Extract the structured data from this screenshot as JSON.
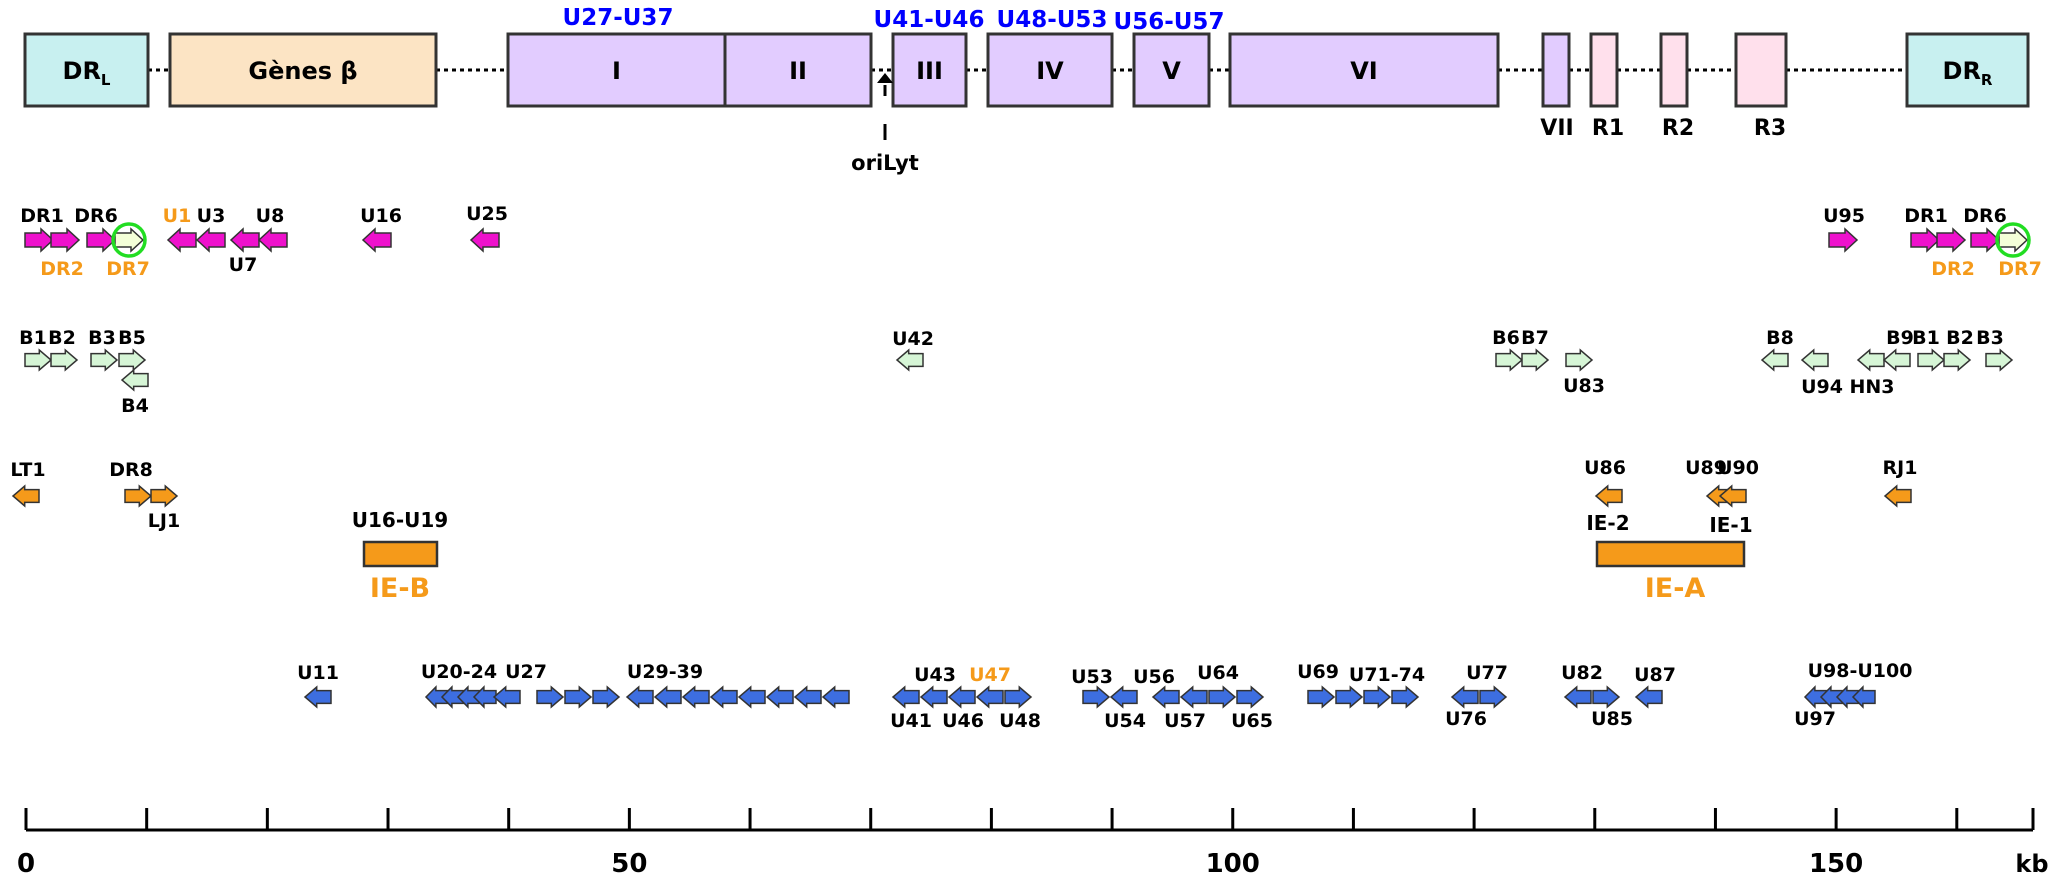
{
  "colors": {
    "dr_fill": "#c8f0f0",
    "beta_fill": "#fce4c4",
    "block_fill": "#e2ccff",
    "r_fill": "#ffe0ec",
    "magenta": "#ee11cc",
    "light_green": "#d6f5d6",
    "orange": "#f59a1a",
    "blue": "#3d6ee0",
    "blue_text": "#0000ff",
    "orange_text": "#f59a1a",
    "circle": "#22dd22"
  },
  "genome": {
    "blocks": [
      {
        "label": "DR",
        "sub": "L",
        "fill": "dr"
      },
      {
        "label": "Gènes β",
        "sub": "",
        "fill": "beta"
      },
      {
        "label": "I",
        "sub": "",
        "fill": "block"
      },
      {
        "label": "II",
        "sub": "",
        "fill": "block"
      },
      {
        "label": "III",
        "sub": "",
        "fill": "block"
      },
      {
        "label": "IV",
        "sub": "",
        "fill": "block"
      },
      {
        "label": "V",
        "sub": "",
        "fill": "block"
      },
      {
        "label": "VI",
        "sub": "",
        "fill": "block"
      },
      {
        "label": "",
        "sub": "",
        "fill": "block"
      },
      {
        "label": "",
        "sub": "",
        "fill": "r"
      },
      {
        "label": "",
        "sub": "",
        "fill": "r"
      },
      {
        "label": "",
        "sub": "",
        "fill": "r"
      },
      {
        "label": "DR",
        "sub": "R",
        "fill": "dr"
      }
    ],
    "range_labels": [
      "U27-U37",
      "U41-U46",
      "U48-U53",
      "U56-U57"
    ],
    "below_labels": [
      "VII",
      "R1",
      "R2",
      "R3"
    ],
    "origin_label": "oriLyt"
  },
  "gene_rows": [
    {
      "color": "magenta",
      "genes": [
        {
          "dir": "r"
        },
        {
          "dir": "r"
        },
        {
          "dir": "r"
        },
        {
          "dir": "r",
          "fill": "light",
          "circled": true
        },
        {
          "dir": "l"
        },
        {
          "dir": "l"
        },
        {
          "dir": "l"
        },
        {
          "dir": "l"
        },
        {
          "dir": "l"
        },
        {
          "dir": "l"
        },
        {
          "dir": "r"
        },
        {
          "dir": "r"
        },
        {
          "dir": "r"
        },
        {
          "dir": "r"
        },
        {
          "dir": "r",
          "fill": "light",
          "circled": true
        }
      ],
      "labels": [
        {
          "text": "DR1",
          "color": "black"
        },
        {
          "text": "DR6",
          "color": "black"
        },
        {
          "text": "U1",
          "color": "orange"
        },
        {
          "text": "U3",
          "color": "black"
        },
        {
          "text": "U8",
          "color": "black"
        },
        {
          "text": "DR2",
          "color": "orange"
        },
        {
          "text": "DR7",
          "color": "orange"
        },
        {
          "text": "U7",
          "color": "black"
        },
        {
          "text": "U16",
          "color": "black"
        },
        {
          "text": "U25",
          "color": "black"
        },
        {
          "text": "U95",
          "color": "black"
        },
        {
          "text": "DR1",
          "color": "black"
        },
        {
          "text": "DR6",
          "color": "black"
        },
        {
          "text": "DR2",
          "color": "orange"
        },
        {
          "text": "DR7",
          "color": "orange"
        }
      ]
    },
    {
      "color": "light_green",
      "genes": [
        {
          "dir": "r"
        },
        {
          "dir": "r"
        },
        {
          "dir": "r"
        },
        {
          "dir": "r"
        },
        {
          "dir": "l"
        },
        {
          "dir": "l"
        },
        {
          "dir": "r"
        },
        {
          "dir": "r"
        },
        {
          "dir": "r"
        },
        {
          "dir": "l"
        },
        {
          "dir": "l"
        },
        {
          "dir": "l"
        },
        {
          "dir": "l"
        },
        {
          "dir": "r"
        },
        {
          "dir": "r"
        },
        {
          "dir": "r"
        }
      ],
      "labels": [
        {
          "text": "B1",
          "color": "black"
        },
        {
          "text": "B2",
          "color": "black"
        },
        {
          "text": "B3",
          "color": "black"
        },
        {
          "text": "B5",
          "color": "black"
        },
        {
          "text": "B4",
          "color": "black"
        },
        {
          "text": "U42",
          "color": "black"
        },
        {
          "text": "B6",
          "color": "black"
        },
        {
          "text": "B7",
          "color": "black"
        },
        {
          "text": "U83",
          "color": "black"
        },
        {
          "text": "B8",
          "color": "black"
        },
        {
          "text": "U94",
          "color": "black"
        },
        {
          "text": "HN3",
          "color": "black"
        },
        {
          "text": "B9",
          "color": "black"
        },
        {
          "text": "B1",
          "color": "black"
        },
        {
          "text": "B2",
          "color": "black"
        },
        {
          "text": "B3",
          "color": "black"
        }
      ]
    },
    {
      "color": "orange",
      "genes": [
        {
          "dir": "l"
        },
        {
          "dir": "r"
        },
        {
          "dir": "r"
        },
        {
          "dir": "l"
        },
        {
          "dir": "l"
        },
        {
          "dir": "l"
        },
        {
          "dir": "l"
        }
      ],
      "labels": [
        {
          "text": "LT1",
          "color": "black"
        },
        {
          "text": "DR8",
          "color": "black"
        },
        {
          "text": "LJ1",
          "color": "black"
        },
        {
          "text": "U86",
          "color": "black"
        },
        {
          "text": "U89",
          "color": "black"
        },
        {
          "text": "U90",
          "color": "black"
        },
        {
          "text": "RJ1",
          "color": "black"
        }
      ]
    }
  ],
  "ie_boxes": [
    {
      "top_label": "U16-U19",
      "name": "IE-B"
    },
    {
      "top_label_left": "IE-2",
      "top_label_right": "IE-1",
      "name": "IE-A"
    }
  ],
  "blue_labels": [
    {
      "text": "U11",
      "color": "black"
    },
    {
      "text": "U20-24",
      "color": "black"
    },
    {
      "text": "U27",
      "color": "black"
    },
    {
      "text": "U29-39",
      "color": "black"
    },
    {
      "text": "U43",
      "color": "black"
    },
    {
      "text": "U47",
      "color": "orange"
    },
    {
      "text": "U41",
      "color": "black"
    },
    {
      "text": "U46",
      "color": "black"
    },
    {
      "text": "U48",
      "color": "black"
    },
    {
      "text": "U53",
      "color": "black"
    },
    {
      "text": "U56",
      "color": "black"
    },
    {
      "text": "U64",
      "color": "black"
    },
    {
      "text": "U54",
      "color": "black"
    },
    {
      "text": "U57",
      "color": "black"
    },
    {
      "text": "U65",
      "color": "black"
    },
    {
      "text": "U69",
      "color": "black"
    },
    {
      "text": "U71-74",
      "color": "black"
    },
    {
      "text": "U77",
      "color": "black"
    },
    {
      "text": "U76",
      "color": "black"
    },
    {
      "text": "U82",
      "color": "black"
    },
    {
      "text": "U87",
      "color": "black"
    },
    {
      "text": "U85",
      "color": "black"
    },
    {
      "text": "U98-U100",
      "color": "black"
    },
    {
      "text": "U97",
      "color": "black"
    }
  ],
  "axis": {
    "min": 0,
    "max": 165,
    "major_ticks": [
      0,
      50,
      100,
      150
    ],
    "minor_ticks": [
      10,
      20,
      30,
      40,
      60,
      70,
      80,
      90,
      110,
      120,
      130,
      140,
      160
    ],
    "unit": "kb"
  }
}
